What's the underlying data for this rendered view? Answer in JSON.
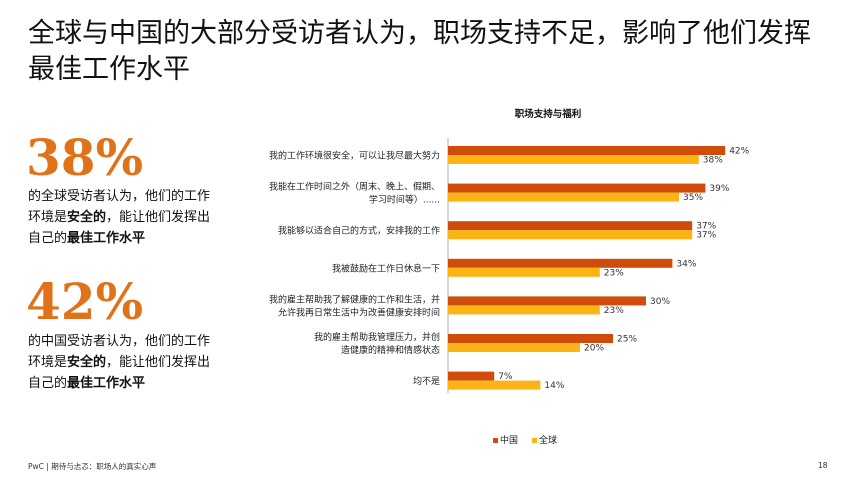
{
  "title": "全球与中国的大部分受访者认为，职场支持不足，影响了他们发挥最佳工作水平",
  "stats": [
    {
      "value": "38%",
      "pre": "的全球受访者认为，他们的工作环境是",
      "bold1": "安全的",
      "mid": "，能让他们发挥出自己的",
      "bold2": "最佳工作水平"
    },
    {
      "value": "42%",
      "pre": "的中国受访者认为，他们的工作环境是",
      "bold1": "安全的",
      "mid": "，能让他们发挥出自己的",
      "bold2": "最佳工作水平"
    }
  ],
  "footer": "PwC | 期待与忐忑：职场人的真实心声",
  "page_number": "18",
  "colors": {
    "china": "#cf4c0a",
    "global": "#fbb316",
    "accent": "#e0731a"
  },
  "chart_data": {
    "type": "bar",
    "orientation": "horizontal",
    "title": "职场支持与福利",
    "categories": [
      [
        "我的工作环境很安全，可以让我尽最大努力"
      ],
      [
        "我能在工作时间之外（周末、晚上、假期、",
        "学习时间等）......"
      ],
      [
        "我能够以适合自己的方式，安排我的工作"
      ],
      [
        "我被鼓励在工作日休息一下"
      ],
      [
        "我的雇主帮助我了解健康的工作和生活，并",
        "允许我再日常生活中为改善健康安排时间"
      ],
      [
        "我的雇主帮助我管理压力，并创",
        "造健康的精神和情感状态"
      ],
      [
        "均不是"
      ]
    ],
    "series": [
      {
        "name": "中国",
        "values": [
          42,
          39,
          37,
          34,
          30,
          25,
          7
        ],
        "labels": [
          "42%",
          "39%",
          "37%",
          "34%",
          "30%",
          "25%",
          "7%"
        ]
      },
      {
        "name": "全球",
        "values": [
          38,
          35,
          37,
          23,
          23,
          20,
          14
        ],
        "labels": [
          "38%",
          "35%",
          "37%",
          "23%",
          "23%",
          "20%",
          "14%"
        ]
      }
    ],
    "legend_position": "bottom-right",
    "grid": false
  }
}
